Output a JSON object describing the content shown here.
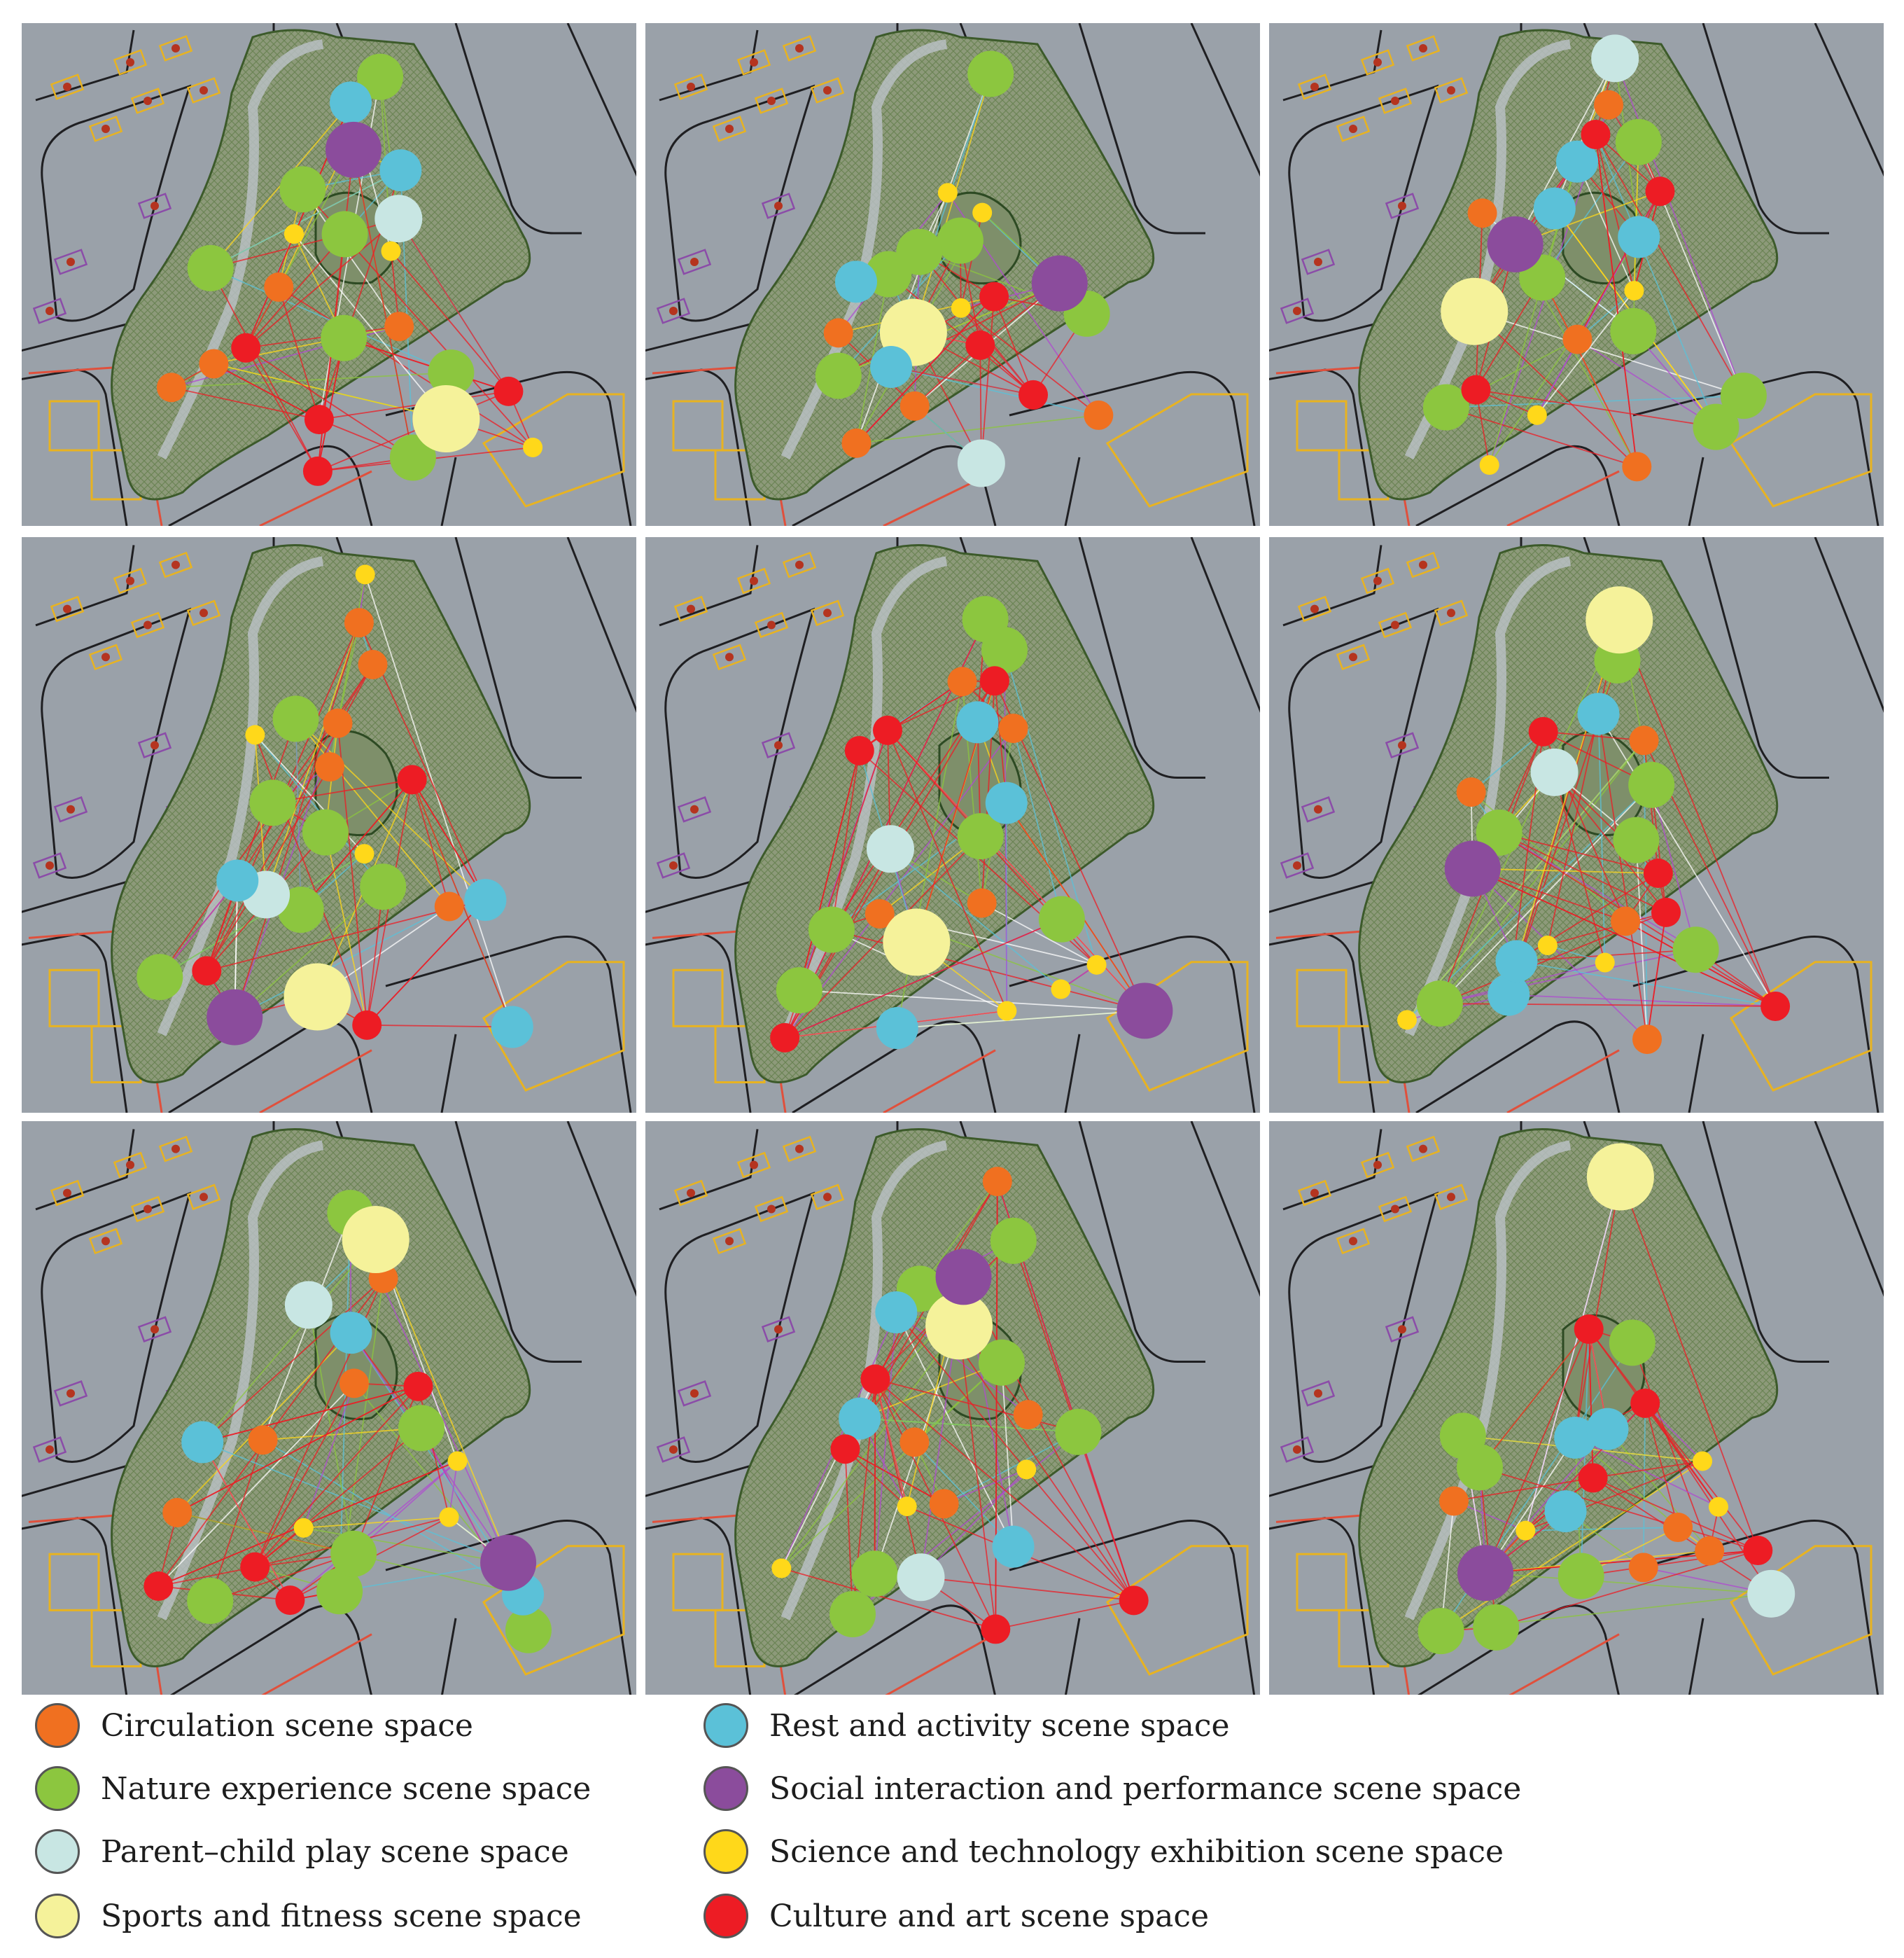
{
  "colors": {
    "background": "#9aa1a9",
    "park_fill": "#8d9a7a",
    "road_line": "#1f1f22",
    "inner_road": "#bcc2c8",
    "circulation": "#f07020",
    "nature": "#8cc63f",
    "parent_child": "#c8e6e3",
    "sports": "#f5f29a",
    "rest": "#5bc1d8",
    "social": "#8b4c9c",
    "science": "#ffd81a",
    "culture": "#ed1c24"
  },
  "legend": [
    {
      "key": "circulation",
      "label": "Circulation scene space"
    },
    {
      "key": "nature",
      "label": "Nature experience scene space"
    },
    {
      "key": "parent_child",
      "label": "Parent–child play scene space"
    },
    {
      "key": "sports",
      "label": "Sports and fitness scene space"
    },
    {
      "key": "rest",
      "label": "Rest and activity scene space"
    },
    {
      "key": "social",
      "label": "Social interaction and performance scene space"
    },
    {
      "key": "science",
      "label": "Science and technology exhibition scene space"
    },
    {
      "key": "culture",
      "label": "Culture and art scene space"
    }
  ],
  "scene_counts_per_panel": [
    {
      "circulation": 4,
      "nature": 7,
      "parent_child": 1,
      "sports": 1,
      "rest": 2,
      "social": 1,
      "science": 3,
      "culture": 4
    },
    {
      "circulation": 4,
      "nature": 6,
      "parent_child": 1,
      "sports": 1,
      "rest": 2,
      "social": 1,
      "science": 3,
      "culture": 3
    },
    {
      "circulation": 4,
      "nature": 6,
      "parent_child": 1,
      "sports": 1,
      "rest": 3,
      "social": 1,
      "science": 3,
      "culture": 3
    },
    {
      "circulation": 5,
      "nature": 6,
      "parent_child": 1,
      "sports": 1,
      "rest": 3,
      "social": 1,
      "science": 3,
      "culture": 3
    },
    {
      "circulation": 4,
      "nature": 6,
      "parent_child": 1,
      "sports": 1,
      "rest": 3,
      "social": 1,
      "science": 3,
      "culture": 4
    },
    {
      "circulation": 4,
      "nature": 6,
      "parent_child": 1,
      "sports": 1,
      "rest": 3,
      "social": 1,
      "science": 3,
      "culture": 4
    },
    {
      "circulation": 4,
      "nature": 6,
      "parent_child": 1,
      "sports": 1,
      "rest": 3,
      "social": 1,
      "science": 3,
      "culture": 4
    },
    {
      "circulation": 4,
      "nature": 6,
      "parent_child": 1,
      "sports": 1,
      "rest": 3,
      "social": 1,
      "science": 3,
      "culture": 4
    },
    {
      "circulation": 4,
      "nature": 6,
      "parent_child": 1,
      "sports": 1,
      "rest": 3,
      "social": 1,
      "science": 3,
      "culture": 4
    }
  ]
}
